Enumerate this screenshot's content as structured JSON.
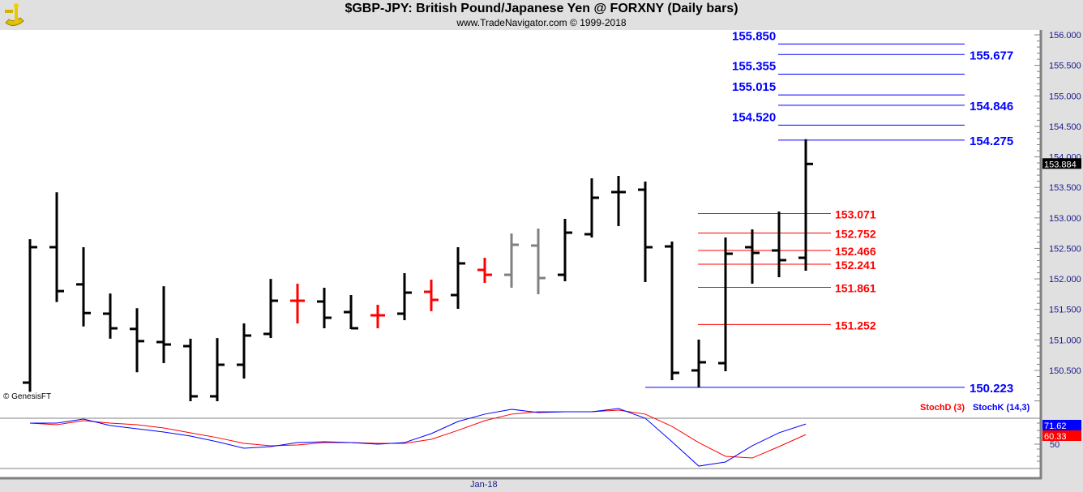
{
  "header": {
    "title": "$GBP-JPY:  British Pound/Japanese Yen @ FORXNY  (Daily bars)",
    "subtitle": "www.TradeNavigator.com © 1999-2018"
  },
  "copyright_tag": "© GenesisFT",
  "date_label": "Jan-18",
  "chart_data": [
    {
      "type": "ohlc",
      "title": "$GBP-JPY Daily bars",
      "ylim": [
        149.9,
        156.1
      ],
      "yticks": [
        "156.000",
        "155.500",
        "155.000",
        "154.500",
        "154.000",
        "153.500",
        "153.000",
        "152.500",
        "152.000",
        "151.500",
        "151.000",
        "150.500"
      ],
      "last_price_label": "153.884",
      "bars": [
        {
          "o": 150.3,
          "h": 152.65,
          "l": 150.15,
          "c": 152.52,
          "color": "#000000"
        },
        {
          "o": 152.52,
          "h": 153.42,
          "l": 151.62,
          "c": 151.8,
          "color": "#000000"
        },
        {
          "o": 151.91,
          "h": 152.52,
          "l": 151.22,
          "c": 151.44,
          "color": "#000000"
        },
        {
          "o": 151.43,
          "h": 151.76,
          "l": 151.02,
          "c": 151.19,
          "color": "#000000"
        },
        {
          "o": 151.18,
          "h": 151.52,
          "l": 150.47,
          "c": 150.98,
          "color": "#000000"
        },
        {
          "o": 150.965,
          "h": 151.88,
          "l": 150.62,
          "c": 150.925,
          "color": "#000000"
        },
        {
          "o": 150.898,
          "h": 151.02,
          "l": 149.995,
          "c": 150.075,
          "color": "#000000"
        },
        {
          "o": 150.075,
          "h": 151.03,
          "l": 149.995,
          "c": 150.593,
          "color": "#000000"
        },
        {
          "o": 150.593,
          "h": 151.27,
          "l": 150.367,
          "c": 151.071,
          "color": "#000000"
        },
        {
          "o": 151.098,
          "h": 152.0,
          "l": 151.031,
          "c": 151.642,
          "color": "#000000"
        },
        {
          "o": 151.642,
          "h": 151.921,
          "l": 151.27,
          "c": 151.642,
          "color": "#ff0000"
        },
        {
          "o": 151.629,
          "h": 151.855,
          "l": 151.191,
          "c": 151.363,
          "color": "#000000"
        },
        {
          "o": 151.456,
          "h": 151.735,
          "l": 151.177,
          "c": 151.191,
          "color": "#000000"
        },
        {
          "o": 151.403,
          "h": 151.576,
          "l": 151.191,
          "c": 151.403,
          "color": "#ff0000"
        },
        {
          "o": 151.43,
          "h": 152.094,
          "l": 151.323,
          "c": 151.775,
          "color": "#000000"
        },
        {
          "o": 151.788,
          "h": 151.988,
          "l": 151.47,
          "c": 151.656,
          "color": "#ff0000"
        },
        {
          "o": 151.735,
          "h": 152.519,
          "l": 151.509,
          "c": 152.254,
          "color": "#000000"
        },
        {
          "o": 152.147,
          "h": 152.346,
          "l": 151.935,
          "c": 152.067,
          "color": "#ff0000"
        },
        {
          "o": 152.067,
          "h": 152.745,
          "l": 151.855,
          "c": 152.559,
          "color": "#808080"
        },
        {
          "o": 152.546,
          "h": 152.825,
          "l": 151.749,
          "c": 152.014,
          "color": "#808080"
        },
        {
          "o": 152.067,
          "h": 152.984,
          "l": 151.961,
          "c": 152.758,
          "color": "#000000"
        },
        {
          "o": 152.732,
          "h": 153.648,
          "l": 152.679,
          "c": 153.33,
          "color": "#000000"
        },
        {
          "o": 153.423,
          "h": 153.688,
          "l": 152.865,
          "c": 153.423,
          "color": "#000000"
        },
        {
          "o": 153.462,
          "h": 153.595,
          "l": 151.948,
          "c": 152.519,
          "color": "#000000"
        },
        {
          "o": 152.532,
          "h": 152.612,
          "l": 150.34,
          "c": 150.46,
          "color": "#000000"
        },
        {
          "o": 150.5,
          "h": 151.005,
          "l": 150.223,
          "c": 150.633,
          "color": "#000000"
        },
        {
          "o": 150.619,
          "h": 152.679,
          "l": 150.486,
          "c": 152.413,
          "color": "#000000"
        },
        {
          "o": 152.519,
          "h": 152.812,
          "l": 151.921,
          "c": 152.426,
          "color": "#000000"
        },
        {
          "o": 152.466,
          "h": 153.104,
          "l": 152.028,
          "c": 152.307,
          "color": "#000000"
        },
        {
          "o": 152.346,
          "h": 154.29,
          "l": 152.134,
          "c": 153.884,
          "color": "#000000"
        }
      ],
      "levels": [
        {
          "value": "155.850",
          "color": "#0000ff",
          "label_side": "left",
          "start_bar": 28
        },
        {
          "value": "155.677",
          "color": "#0000ff",
          "label_side": "right",
          "start_bar": 28
        },
        {
          "value": "155.355",
          "color": "#0000ff",
          "label_side": "left",
          "start_bar": 28
        },
        {
          "value": "155.015",
          "color": "#0000ff",
          "label_side": "left",
          "start_bar": 28
        },
        {
          "value": "154.846",
          "color": "#0000ff",
          "label_side": "right",
          "start_bar": 28
        },
        {
          "value": "154.520",
          "color": "#0000ff",
          "label_side": "left",
          "start_bar": 28
        },
        {
          "value": "154.275",
          "color": "#0000ff",
          "label_side": "right",
          "start_bar": 28
        },
        {
          "value": "150.223",
          "color": "#0000ff",
          "label_side": "right",
          "start_bar": 23
        },
        {
          "value": "153.071",
          "color": "#ff0000",
          "label_side": "red",
          "start_bar": 25
        },
        {
          "value": "152.752",
          "color": "#ff0000",
          "label_side": "red",
          "start_bar": 25
        },
        {
          "value": "152.466",
          "color": "#ff0000",
          "label_side": "red",
          "start_bar": 25
        },
        {
          "value": "152.241",
          "color": "#ff0000",
          "label_side": "red",
          "start_bar": 25
        },
        {
          "value": "151.861",
          "color": "#ff0000",
          "label_side": "red",
          "start_bar": 25
        },
        {
          "value": "151.252",
          "color": "#ff0000",
          "label_side": "red",
          "start_bar": 25
        }
      ]
    },
    {
      "type": "line",
      "title": "Stochastics",
      "ytick": "50",
      "series": [
        {
          "name": "StochD (3)",
          "color": "#ff0000",
          "last_label": "60.33",
          "values": [
            72.6,
            70.9,
            75.2,
            72.6,
            70.9,
            67.4,
            62.2,
            57.0,
            50.9,
            48.3,
            49.1,
            51.7,
            51.7,
            50.9,
            50.9,
            55.2,
            64.8,
            75.2,
            82.2,
            84.8,
            84.8,
            84.8,
            86.5,
            82.2,
            69.1,
            51.7,
            37.0,
            35.2,
            47.4,
            60.33
          ]
        },
        {
          "name": "StochK (14,3)",
          "color": "#0000ff",
          "last_label": "71.62",
          "values": [
            72.6,
            72.6,
            76.9,
            70.0,
            66.5,
            63.0,
            58.7,
            52.6,
            45.7,
            47.4,
            51.7,
            52.6,
            51.7,
            50.0,
            51.7,
            61.3,
            74.3,
            82.2,
            87.4,
            83.9,
            84.8,
            84.8,
            88.2,
            77.8,
            52.6,
            26.5,
            30.9,
            48.3,
            62.2,
            71.62
          ]
        }
      ]
    }
  ]
}
